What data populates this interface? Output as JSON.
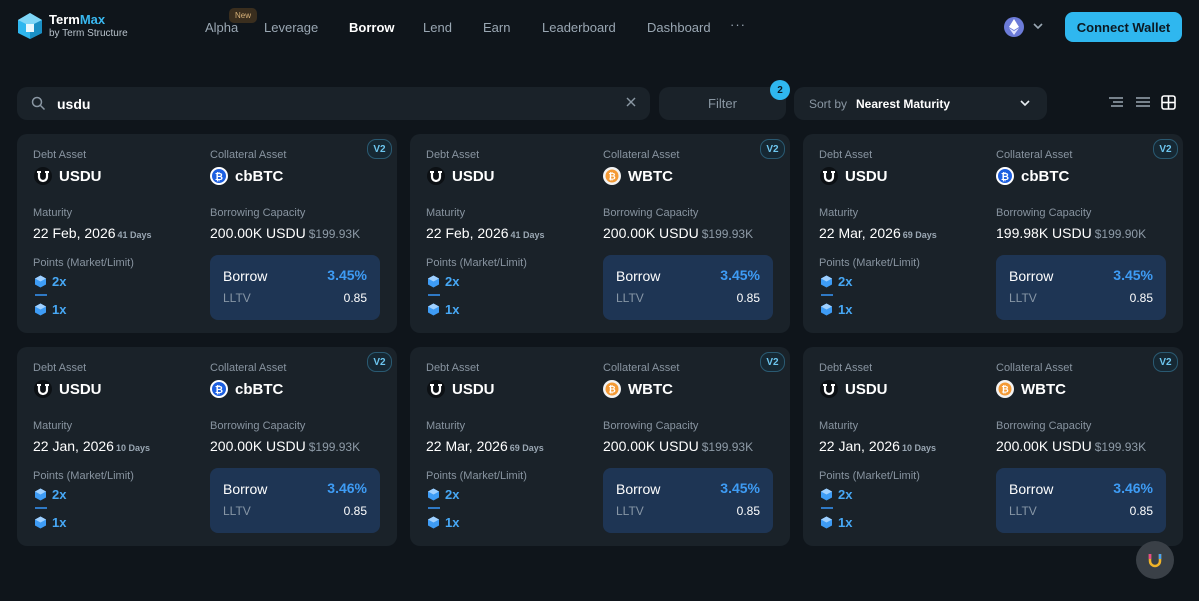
{
  "app": {
    "title_main": "Term",
    "title_accent": "Max",
    "subtitle": "by Term Structure"
  },
  "nav": {
    "items": [
      {
        "label": "Alpha",
        "active": false
      },
      {
        "label": "Leverage",
        "active": false
      },
      {
        "label": "Borrow",
        "active": true
      },
      {
        "label": "Lend",
        "active": false
      },
      {
        "label": "Earn",
        "active": false
      },
      {
        "label": "Leaderboard",
        "active": false
      },
      {
        "label": "Dashboard",
        "active": false
      }
    ],
    "new_badge": "New",
    "more": "···"
  },
  "header": {
    "network_icon": "ethereum-icon",
    "connect_label": "Connect Wallet"
  },
  "toolbar": {
    "search_value": "usdu",
    "filter_label": "Filter",
    "filter_count": "2",
    "sort_label": "Sort by",
    "sort_value": "Nearest Maturity"
  },
  "labels": {
    "debt_asset": "Debt Asset",
    "collateral_asset": "Collateral Asset",
    "maturity": "Maturity",
    "borrowing_capacity": "Borrowing Capacity",
    "points": "Points (Market/Limit)",
    "borrow": "Borrow",
    "lltv": "LLTV"
  },
  "cards": [
    {
      "version": "V2",
      "debt": "USDU",
      "collateral": "cbBTC",
      "collateral_icon": "cbbtc-icon",
      "maturity": "22 Feb, 2026",
      "days": "41 Days",
      "capacity": "200.00K USDU",
      "capacity_usd": "$199.93K",
      "points_market": "2x",
      "points_limit": "1x",
      "rate": "3.45%",
      "lltv": "0.85"
    },
    {
      "version": "V2",
      "debt": "USDU",
      "collateral": "WBTC",
      "collateral_icon": "wbtc-icon",
      "maturity": "22 Feb, 2026",
      "days": "41 Days",
      "capacity": "200.00K USDU",
      "capacity_usd": "$199.93K",
      "points_market": "2x",
      "points_limit": "1x",
      "rate": "3.45%",
      "lltv": "0.85"
    },
    {
      "version": "V2",
      "debt": "USDU",
      "collateral": "cbBTC",
      "collateral_icon": "cbbtc-icon",
      "maturity": "22 Mar, 2026",
      "days": "69 Days",
      "capacity": "199.98K USDU",
      "capacity_usd": "$199.90K",
      "points_market": "2x",
      "points_limit": "1x",
      "rate": "3.45%",
      "lltv": "0.85"
    },
    {
      "version": "V2",
      "debt": "USDU",
      "collateral": "cbBTC",
      "collateral_icon": "cbbtc-icon",
      "maturity": "22 Jan, 2026",
      "days": "10 Days",
      "capacity": "200.00K USDU",
      "capacity_usd": "$199.93K",
      "points_market": "2x",
      "points_limit": "1x",
      "rate": "3.46%",
      "lltv": "0.85"
    },
    {
      "version": "V2",
      "debt": "USDU",
      "collateral": "WBTC",
      "collateral_icon": "wbtc-icon",
      "maturity": "22 Mar, 2026",
      "days": "69 Days",
      "capacity": "200.00K USDU",
      "capacity_usd": "$199.93K",
      "points_market": "2x",
      "points_limit": "1x",
      "rate": "3.45%",
      "lltv": "0.85"
    },
    {
      "version": "V2",
      "debt": "USDU",
      "collateral": "WBTC",
      "collateral_icon": "wbtc-icon",
      "maturity": "22 Jan, 2026",
      "days": "10 Days",
      "capacity": "200.00K USDU",
      "capacity_usd": "$199.93K",
      "points_market": "2x",
      "points_limit": "1x",
      "rate": "3.46%",
      "lltv": "0.85"
    }
  ],
  "colors": {
    "background": "#0f151b",
    "card": "#1a2229",
    "accent": "#2fb7ef",
    "rate": "#3e9cf5",
    "borrow_box": "#1e3554"
  }
}
